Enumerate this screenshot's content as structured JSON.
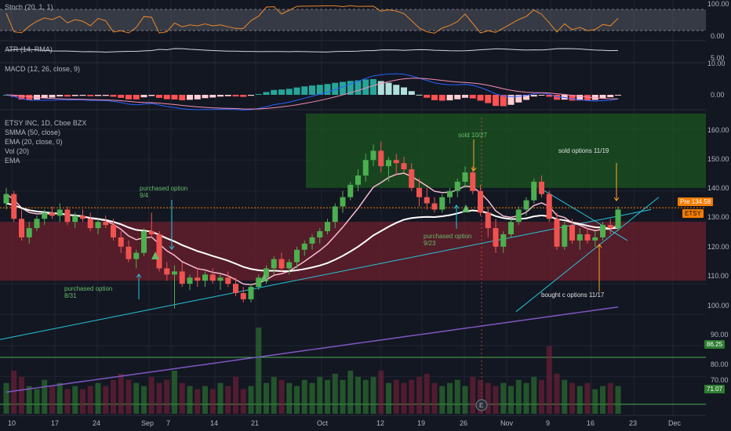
{
  "colors": {
    "background": "#131722",
    "grid": "#1f2430",
    "up": "#26a69a",
    "down": "#ef5350",
    "candle_up": "#4caf50",
    "candle_down": "#ef5350",
    "stoch": "#e8872b",
    "atr": "#d1d4dc",
    "macd": "#2962ff",
    "signal": "#f48fb1",
    "smma": "#ffffff",
    "ema20": "#f8bbd0",
    "ema_long": "#7e57c2",
    "trend": "#26c6da",
    "green_zone": "#1b5e20",
    "red_zone": "#7a1f2e",
    "annotation_green": "#66bb6a",
    "annotation_orange": "#ffa726",
    "annotation_cyan": "#26c6da",
    "annotation_white": "#e0e0e0"
  },
  "panes": {
    "stoch": {
      "label": "Stoch (20, 1, 1)",
      "ticks": [
        "100.00",
        "0.00"
      ]
    },
    "atr": {
      "label": "ATR (14, RMA)",
      "ticks": [
        "5.00"
      ]
    },
    "macd": {
      "label": "MACD (12, 26, close, 9)",
      "ticks": [
        "10.00",
        "0.00"
      ]
    },
    "main": {
      "legend": [
        "ETSY INC, 1D, Cboe BZX",
        "SMMA (50, close)",
        "EMA (20, close, 0)",
        "Vol (20)",
        "EMA"
      ],
      "ticks": [
        "160.00",
        "150.00",
        "140.00",
        "130.00",
        "120.00",
        "110.00",
        "100.00",
        "90.00",
        "80.00",
        "70.00"
      ]
    }
  },
  "price_badges": {
    "pre_label": "Pre",
    "pre_value": "134.58",
    "symbol": "ETSY",
    "level1": "86.25",
    "level2": "71.07"
  },
  "x_axis": {
    "labels": [
      "10",
      "17",
      "24",
      "Sep",
      "7",
      "14",
      "21",
      "Oct",
      "12",
      "19",
      "26",
      "Nov",
      "9",
      "16",
      "23",
      "Dec"
    ]
  },
  "annotations": {
    "purchased_8_31": "purchased option\n8/31",
    "purchased_9_4": "purchased option\n9/4",
    "purchased_9_23": "purchased option\n9/23",
    "sold_10_27": "sold 10/27",
    "sold_11_19": "sold options 11/19",
    "bought_11_17": "bought c options 11/17",
    "earnings_marker": "E"
  },
  "chart_data": {
    "type": "candlestick",
    "symbol": "ETSY INC",
    "interval": "1D",
    "exchange": "Cboe BZX",
    "ohlc": [
      [
        136,
        141,
        134,
        139
      ],
      [
        139,
        140,
        130,
        131
      ],
      [
        131,
        134,
        124,
        125
      ],
      [
        125,
        130,
        123,
        128
      ],
      [
        128,
        132,
        127,
        131
      ],
      [
        131,
        134,
        129,
        133
      ],
      [
        133,
        135,
        131,
        132
      ],
      [
        132,
        136,
        130,
        134
      ],
      [
        134,
        135,
        129,
        130
      ],
      [
        130,
        133,
        128,
        132
      ],
      [
        132,
        134,
        130,
        131
      ],
      [
        131,
        133,
        127,
        128
      ],
      [
        128,
        131,
        126,
        130
      ],
      [
        130,
        132,
        128,
        129
      ],
      [
        129,
        131,
        124,
        125
      ],
      [
        125,
        127,
        120,
        122
      ],
      [
        122,
        124,
        117,
        118
      ],
      [
        118,
        121,
        115,
        120
      ],
      [
        120,
        128,
        119,
        127
      ],
      [
        127,
        133,
        125,
        126
      ],
      [
        126,
        127,
        114,
        115
      ],
      [
        115,
        117,
        111,
        113
      ],
      [
        113,
        116,
        102,
        114
      ],
      [
        114,
        117,
        109,
        110
      ],
      [
        110,
        113,
        108,
        112
      ],
      [
        112,
        115,
        109,
        111
      ],
      [
        111,
        114,
        109,
        113
      ],
      [
        113,
        115,
        110,
        111
      ],
      [
        111,
        113,
        108,
        112
      ],
      [
        112,
        114,
        109,
        110
      ],
      [
        110,
        112,
        106,
        107
      ],
      [
        107,
        109,
        104,
        105
      ],
      [
        105,
        110,
        104,
        109
      ],
      [
        109,
        113,
        108,
        112
      ],
      [
        112,
        116,
        110,
        115
      ],
      [
        115,
        119,
        113,
        118
      ],
      [
        118,
        120,
        114,
        115
      ],
      [
        115,
        118,
        113,
        117
      ],
      [
        117,
        122,
        115,
        121
      ],
      [
        121,
        124,
        119,
        123
      ],
      [
        123,
        126,
        121,
        125
      ],
      [
        125,
        128,
        123,
        127
      ],
      [
        127,
        131,
        126,
        130
      ],
      [
        130,
        136,
        128,
        135
      ],
      [
        135,
        140,
        133,
        138
      ],
      [
        138,
        143,
        137,
        142
      ],
      [
        142,
        147,
        140,
        145
      ],
      [
        145,
        152,
        143,
        150
      ],
      [
        150,
        155,
        148,
        153
      ],
      [
        153,
        156,
        146,
        148
      ],
      [
        148,
        151,
        143,
        150
      ],
      [
        150,
        152,
        145,
        149
      ],
      [
        149,
        151,
        146,
        147
      ],
      [
        147,
        149,
        140,
        141
      ],
      [
        141,
        144,
        135,
        138
      ],
      [
        138,
        141,
        134,
        136
      ],
      [
        136,
        138,
        133,
        134
      ],
      [
        134,
        139,
        133,
        138
      ],
      [
        138,
        141,
        136,
        140
      ],
      [
        140,
        144,
        138,
        143
      ],
      [
        143,
        148,
        141,
        146
      ],
      [
        146,
        148,
        139,
        140
      ],
      [
        140,
        142,
        132,
        133
      ],
      [
        133,
        135,
        125,
        128
      ],
      [
        128,
        131,
        120,
        122
      ],
      [
        122,
        127,
        120,
        126
      ],
      [
        126,
        131,
        125,
        130
      ],
      [
        130,
        135,
        129,
        134
      ],
      [
        134,
        138,
        132,
        137
      ],
      [
        137,
        144,
        136,
        143
      ],
      [
        143,
        145,
        138,
        139
      ],
      [
        139,
        140,
        130,
        131
      ],
      [
        131,
        133,
        121,
        122
      ],
      [
        122,
        130,
        121,
        129
      ],
      [
        129,
        131,
        123,
        124
      ],
      [
        124,
        128,
        121,
        126
      ],
      [
        126,
        128,
        123,
        124
      ],
      [
        124,
        127,
        122,
        125
      ],
      [
        125,
        130,
        124,
        129
      ],
      [
        129,
        131,
        126,
        128
      ],
      [
        128,
        135,
        127,
        134
      ]
    ],
    "volume": [
      10,
      14,
      12,
      9,
      8,
      11,
      9,
      10,
      8,
      9,
      8,
      9,
      10,
      9,
      11,
      13,
      11,
      10,
      9,
      12,
      10,
      11,
      14,
      10,
      9,
      8,
      9,
      8,
      10,
      9,
      12,
      8,
      9,
      28,
      10,
      12,
      11,
      10,
      9,
      11,
      10,
      12,
      11,
      13,
      11,
      14,
      12,
      11,
      12,
      14,
      10,
      11,
      10,
      11,
      12,
      13,
      10,
      9,
      10,
      11,
      9,
      12,
      11,
      10,
      9,
      10,
      9,
      11,
      10,
      12,
      11,
      22,
      13,
      11,
      10,
      9,
      10,
      8,
      9,
      10,
      9
    ],
    "current_price": 134.58,
    "y_range": [
      68,
      165
    ],
    "horizontal_levels": [
      86.25,
      71.07
    ],
    "zones": [
      {
        "color": "green",
        "from": 141,
        "to": 165
      },
      {
        "color": "red",
        "from": 111,
        "to": 130
      }
    ],
    "indicators": {
      "stochastic": {
        "name": "Stoch (20, 1, 1)",
        "range": [
          0,
          100
        ]
      },
      "atr": {
        "name": "ATR (14, RMA)"
      },
      "macd": {
        "name": "MACD (12, 26, close, 9)",
        "range": [
          -10,
          10
        ]
      }
    }
  }
}
